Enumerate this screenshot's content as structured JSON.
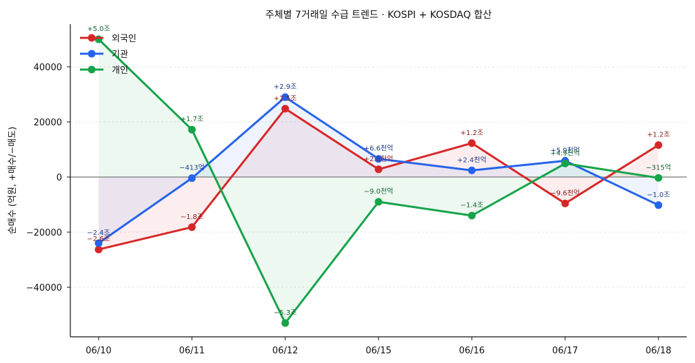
{
  "chart_data": {
    "type": "line",
    "title": "주체별 7거래일 수급 트렌드 · KOSPI + KOSDAQ 합산",
    "xlabel": "",
    "ylabel": "순매수 (억원, +매수/−매도)",
    "categories": [
      "06/10",
      "06/11",
      "06/12",
      "06/15",
      "06/16",
      "06/17",
      "06/18"
    ],
    "ylim": [
      -58000,
      55500
    ],
    "yticks": [
      -40000,
      -20000,
      0,
      20000,
      40000
    ],
    "grid": "horizontal",
    "legend_position": "top-left",
    "series": [
      {
        "name": "외국인",
        "color": "#d62728",
        "label_color": "#8b1a1a",
        "values": [
          -26300,
          -18200,
          24800,
          2800,
          12300,
          -9600,
          11600
        ],
        "labels": [
          "−2.6조",
          "−1.8조",
          "+2.5조",
          "+2.8천억",
          "+1.2조",
          "−9.6천억",
          "+1.2조"
        ]
      },
      {
        "name": "기관",
        "color": "#2563eb",
        "label_color": "#1e3a8a",
        "values": [
          -24000,
          -413,
          29000,
          6600,
          2400,
          5900,
          -10200
        ],
        "labels": [
          "−2.4조",
          "−413억",
          "+2.9조",
          "+6.6천억",
          "+2.4천억",
          "+5.9천억",
          "−1.0조"
        ]
      },
      {
        "name": "개인",
        "color": "#16a34a",
        "label_color": "#166534",
        "values": [
          50000,
          17200,
          -53000,
          -9000,
          -14000,
          4900,
          -315
        ],
        "labels": [
          "+5.0조",
          "+1.7조",
          "−5.3조",
          "−9.0천억",
          "−1.4조",
          "+4.9천억",
          "−315억"
        ]
      }
    ]
  }
}
